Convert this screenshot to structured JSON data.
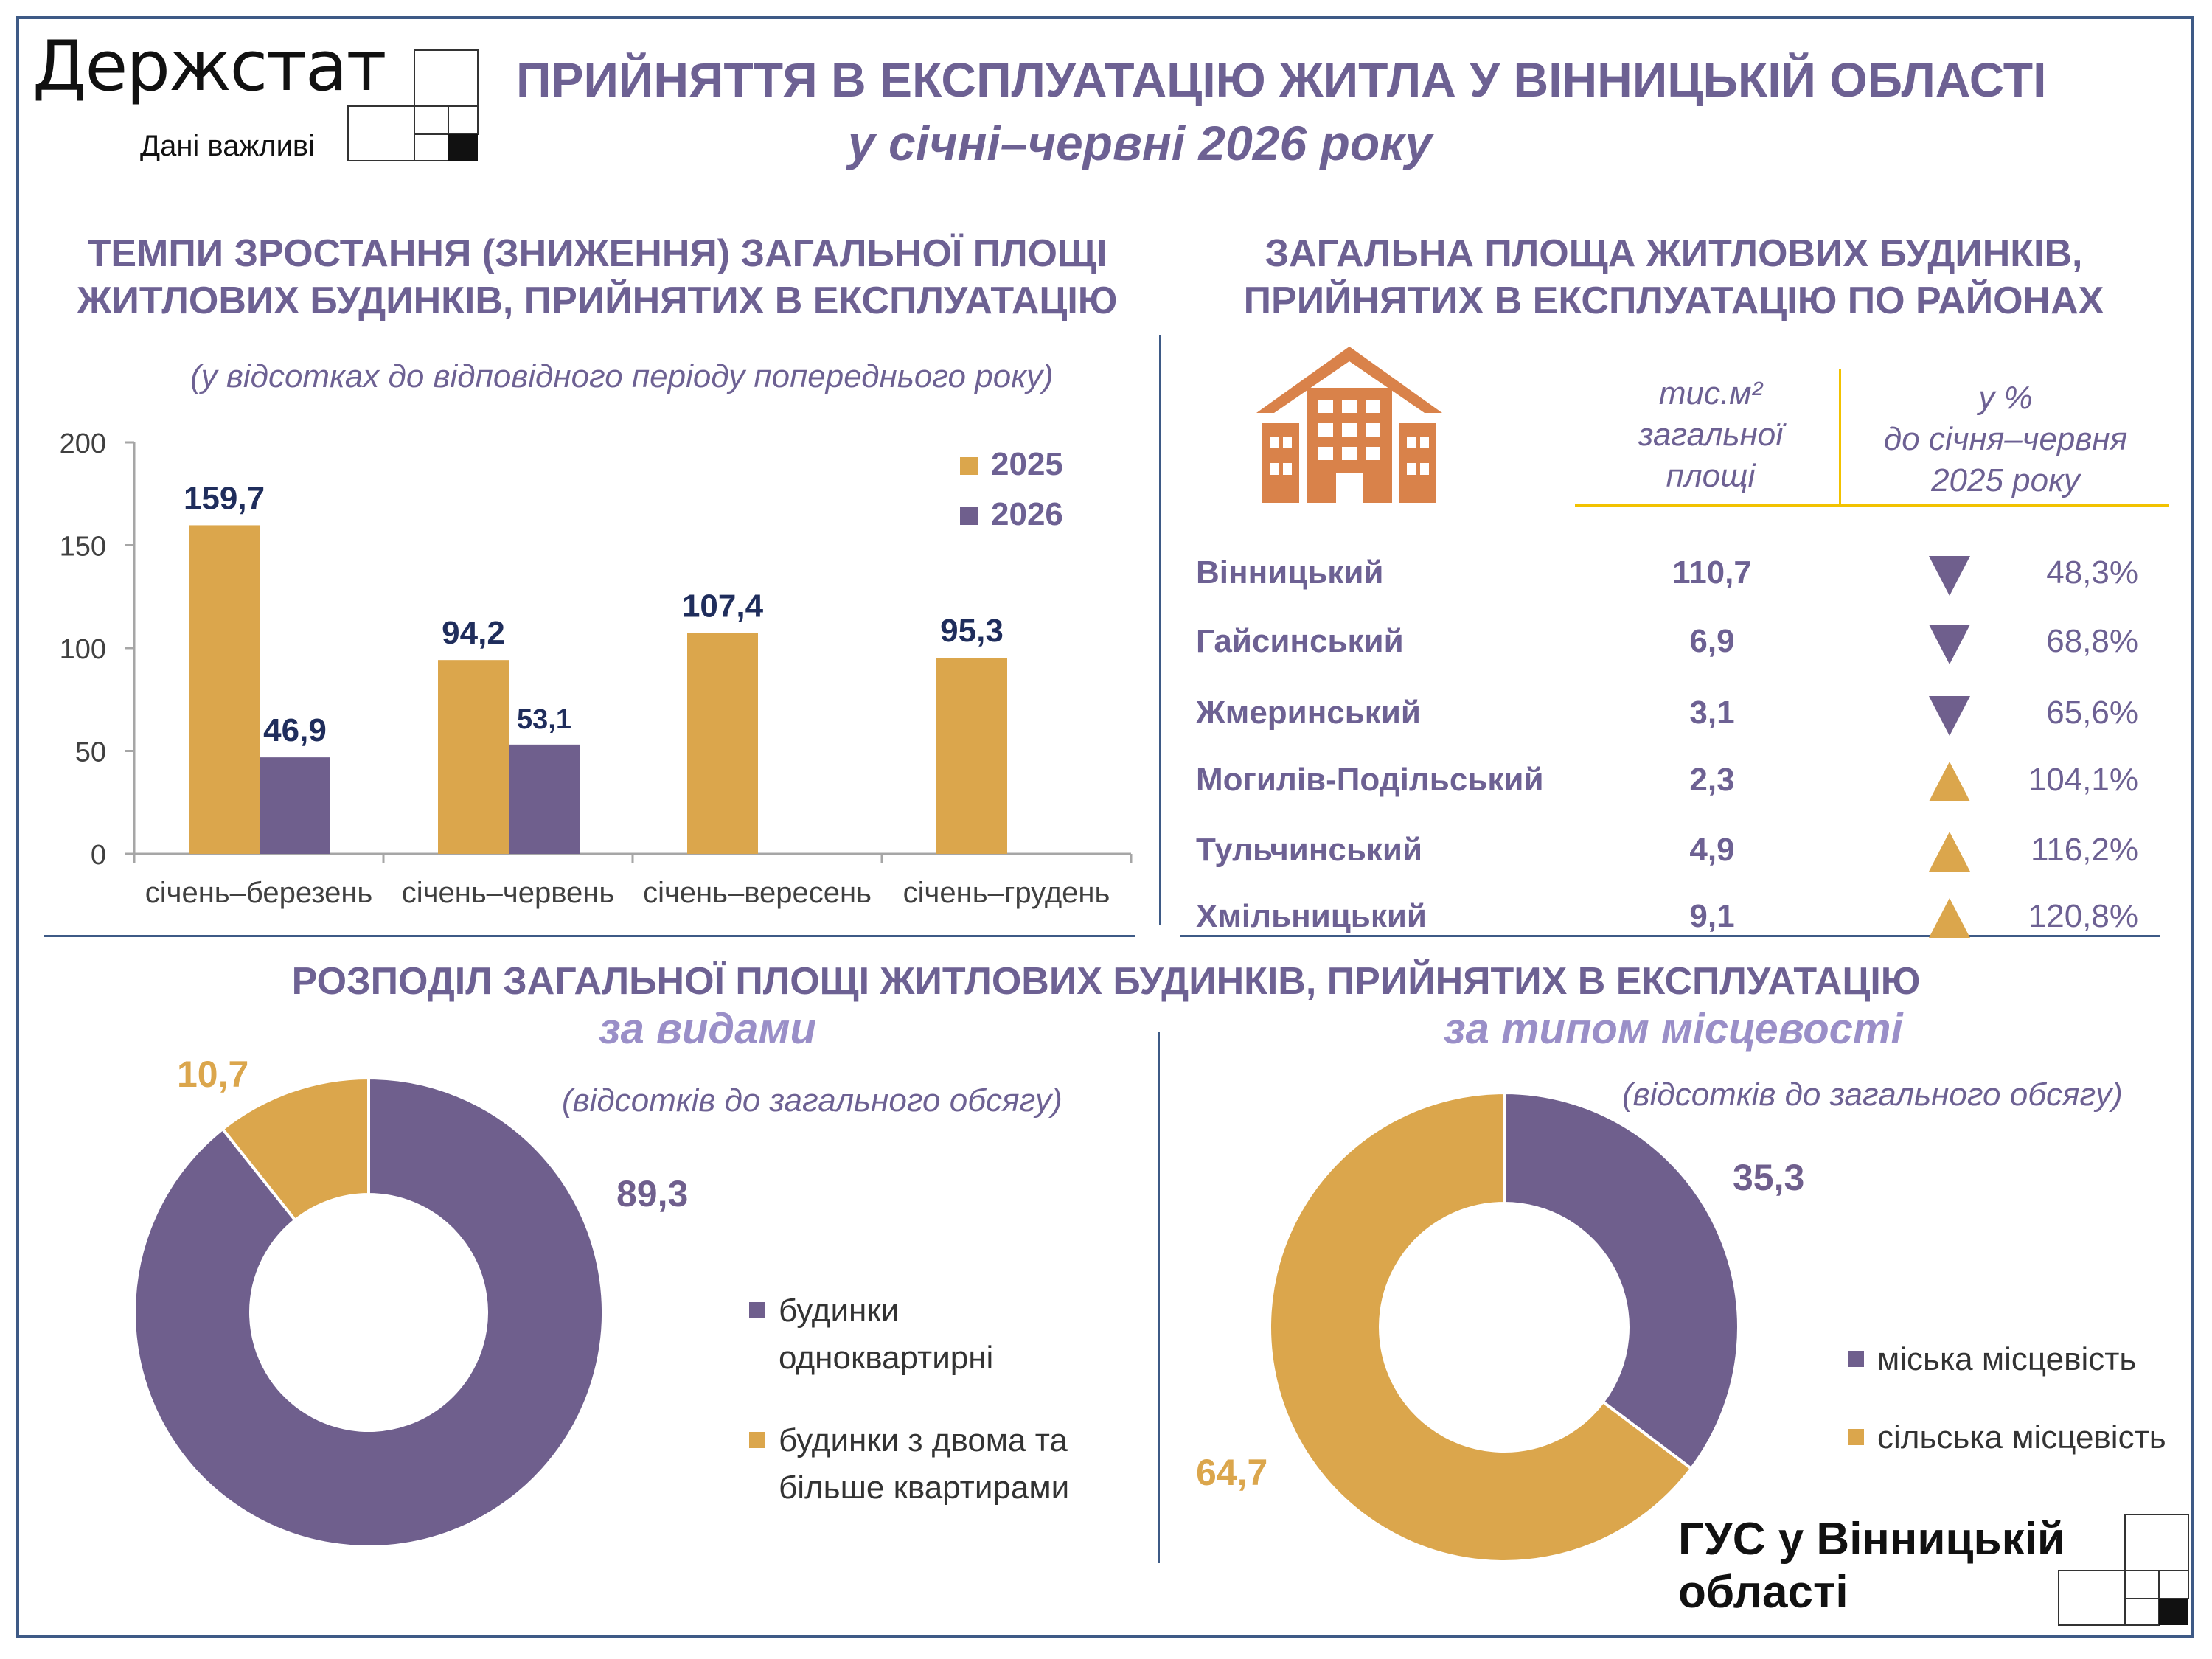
{
  "header": {
    "logo_name": "Держстат",
    "logo_tagline": "Дані важливі",
    "title": "ПРИЙНЯТТЯ В ЕКСПЛУАТАЦІЮ ЖИТЛА У ВІННИЦЬКІЙ ОБЛАСТІ",
    "subtitle": "у січні–червні 2026 року"
  },
  "growth_section": {
    "title_line1": "ТЕМПИ ЗРОСТАННЯ (ЗНИЖЕННЯ) ЗАГАЛЬНОЇ ПЛОЩІ",
    "title_line2": "ЖИТЛОВИХ БУДИНКІВ, ПРИЙНЯТИХ В ЕКСПЛУАТАЦІЮ",
    "note": "(у відсотках  до відповідного періоду попереднього року)"
  },
  "districts_section": {
    "title_line1": "ЗАГАЛЬНА ПЛОЩА ЖИТЛОВИХ БУДИНКІВ,",
    "title_line2": "ПРИЙНЯТИХ В ЕКСПЛУАТАЦІЮ ПО РАЙОНАХ",
    "col_area_l1": "тис.м²",
    "col_area_l2": "загальної",
    "col_area_l3": "площі",
    "col_pct_l1": "у %",
    "col_pct_l2": "до січня–червня",
    "col_pct_l3": "2025 року",
    "rows": [
      {
        "name": "Вінницький",
        "area": "110,7",
        "pct": "48,3%",
        "trend": "down"
      },
      {
        "name": "Гайсинський",
        "area": "6,9",
        "pct": "68,8%",
        "trend": "down"
      },
      {
        "name": "Жмеринський",
        "area": "3,1",
        "pct": "65,6%",
        "trend": "down"
      },
      {
        "name": "Могилів-Подільський",
        "area": "2,3",
        "pct": "104,1%",
        "trend": "up"
      },
      {
        "name": "Тульчинський",
        "area": "4,9",
        "pct": "116,2%",
        "trend": "up"
      },
      {
        "name": "Хмільницький",
        "area": "9,1",
        "pct": "120,8%",
        "trend": "up"
      }
    ],
    "icon": "apartment-building-icon"
  },
  "distribution_section": {
    "title": "РОЗПОДІЛ ЗАГАЛЬНОЇ ПЛОЩІ ЖИТЛОВИХ БУДИНКІВ, ПРИЙНЯТИХ В ЕКСПЛУАТАЦІЮ",
    "by_type_header": "за видами",
    "by_locality_header": "за типом місцевості",
    "note": "(відсотків до загального обсягу)"
  },
  "colors": {
    "purple": "#6f5f8d",
    "gold": "#dba64c",
    "title_purple": "#6d6193",
    "navy_label": "#1f2d5c",
    "down_arrow": "#6f5f8d",
    "up_arrow": "#dba64c",
    "frame_blue": "#3e5a86",
    "table_line": "#f2c200",
    "icon_orange": "#d9824a"
  },
  "chart_data": [
    {
      "type": "bar",
      "categories": [
        "січень–березень",
        "січень–червень",
        "січень–вересень",
        "січень–грудень"
      ],
      "series": [
        {
          "name": "2025",
          "values": [
            159.7,
            94.2,
            107.4,
            95.3
          ],
          "labels": [
            "159,7",
            "94,2",
            "107,4",
            "95,3"
          ]
        },
        {
          "name": "2026",
          "values": [
            46.9,
            53.1,
            null,
            null
          ],
          "labels": [
            "46,9",
            "53,1",
            "",
            ""
          ]
        }
      ],
      "yticks": [
        "0",
        "50",
        "100",
        "150",
        "200"
      ],
      "ylim": [
        0,
        200
      ],
      "legend_position": "top-right"
    },
    {
      "type": "pie",
      "variant": "donut",
      "slices": [
        {
          "name": "будинки одноквартирні",
          "value": 89.3,
          "label": "89,3"
        },
        {
          "name": "будинки з двома та більше квартирами",
          "value": 10.7,
          "label": "10,7"
        }
      ],
      "legend_lines": [
        [
          "будинки",
          "одноквартирні"
        ],
        [
          "будинки з двома та",
          "більше квартирами"
        ]
      ]
    },
    {
      "type": "pie",
      "variant": "donut",
      "slices": [
        {
          "name": "міська місцевість",
          "value": 35.3,
          "label": "35,3"
        },
        {
          "name": "сільська місцевість",
          "value": 64.7,
          "label": "64,7"
        }
      ]
    }
  ],
  "footer": {
    "org_line1": "ГУС у Вінницькій",
    "org_line2": "області"
  }
}
